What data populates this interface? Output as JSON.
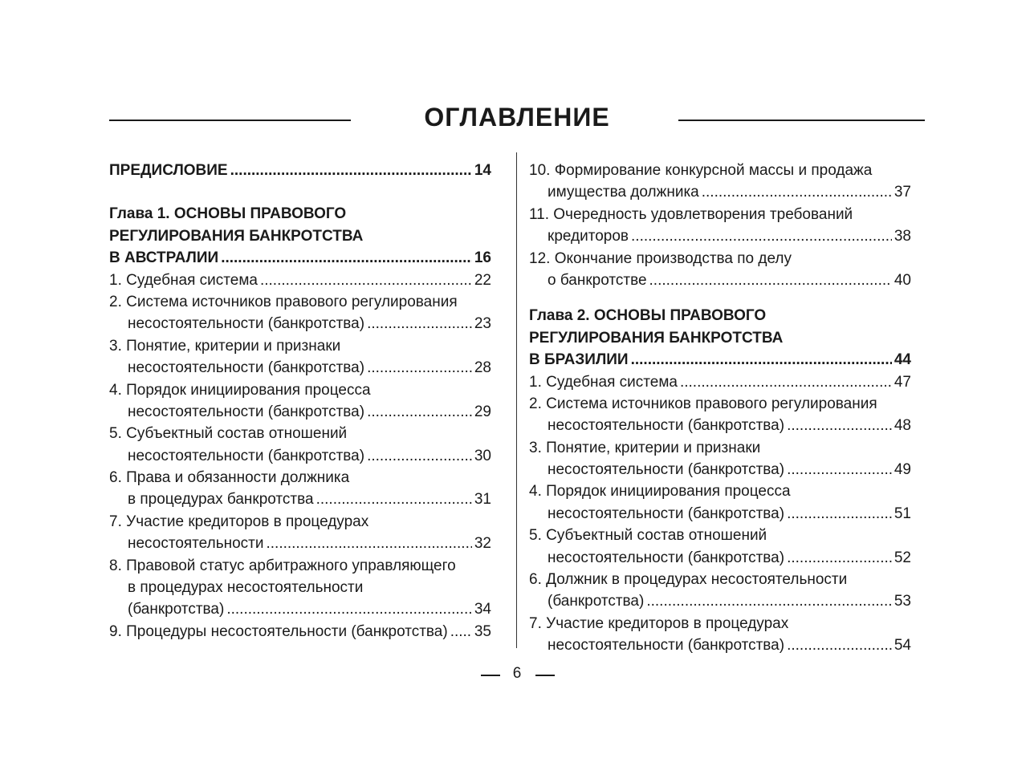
{
  "title": "ОГЛАВЛЕНИЕ",
  "page_number": "6",
  "columns": [
    {
      "entries": [
        {
          "lines": [
            "ПРЕДИСЛОВИЕ"
          ],
          "page": 14,
          "bold": true
        },
        {
          "lines": [
            "Глава 1. ОСНОВЫ ПРАВОВОГО",
            "РЕГУЛИРОВАНИЯ БАНКРОТСТВА",
            "В АВСТРАЛИИ"
          ],
          "page": 16,
          "bold": true
        },
        {
          "lines": [
            "1. Судебная система"
          ],
          "page": 22
        },
        {
          "lines": [
            "2. Система источников правового регулирования",
            "несостоятельности (банкротства)"
          ],
          "page": 23
        },
        {
          "lines": [
            "3. Понятие, критерии и признаки",
            "несостоятельности (банкротства)"
          ],
          "page": 28
        },
        {
          "lines": [
            "4. Порядок инициирования процесса",
            "несостоятельности (банкротства)"
          ],
          "page": 29
        },
        {
          "lines": [
            "5. Субъектный состав отношений",
            "несостоятельности (банкротства)"
          ],
          "page": 30
        },
        {
          "lines": [
            "6. Права и обязанности должника",
            "в процедурах банкротства"
          ],
          "page": 31
        },
        {
          "lines": [
            "7. Участие кредиторов в процедурах",
            "несостоятельности"
          ],
          "page": 32
        },
        {
          "lines": [
            "8. Правовой статус арбитражного управляющего",
            "в процедурах несостоятельности",
            "(банкротства)"
          ],
          "page": 34
        },
        {
          "lines": [
            "9. Процедуры несостоятельности (банкротства)"
          ],
          "page": 35
        }
      ]
    },
    {
      "entries": [
        {
          "lines": [
            "10. Формирование конкурсной массы и продажа",
            "имущества должника"
          ],
          "page": 37
        },
        {
          "lines": [
            "11. Очередность удовлетворения требований",
            "кредиторов"
          ],
          "page": 38
        },
        {
          "lines": [
            "12. Окончание производства по делу",
            "о банкротстве"
          ],
          "page": 40
        },
        {
          "lines": [
            "Глава 2. ОСНОВЫ ПРАВОВОГО",
            "РЕГУЛИРОВАНИЯ БАНКРОТСТВА",
            "В БРАЗИЛИИ"
          ],
          "page": 44,
          "bold": true
        },
        {
          "lines": [
            "1. Судебная система"
          ],
          "page": 47
        },
        {
          "lines": [
            "2. Система источников правового регулирования",
            "несостоятельности (банкротства)"
          ],
          "page": 48
        },
        {
          "lines": [
            "3. Понятие, критерии и признаки",
            "несостоятельности (банкротства)"
          ],
          "page": 49
        },
        {
          "lines": [
            "4. Порядок инициирования процесса",
            "несостоятельности (банкротства)"
          ],
          "page": 51
        },
        {
          "lines": [
            "5. Субъектный состав отношений",
            "несостоятельности (банкротства)"
          ],
          "page": 52
        },
        {
          "lines": [
            "6. Должник в процедурах несостоятельности",
            "(банкротства)"
          ],
          "page": 53
        },
        {
          "lines": [
            "7. Участие кредиторов в процедурах",
            "несостоятельности (банкротства)"
          ],
          "page": 54
        }
      ]
    }
  ]
}
